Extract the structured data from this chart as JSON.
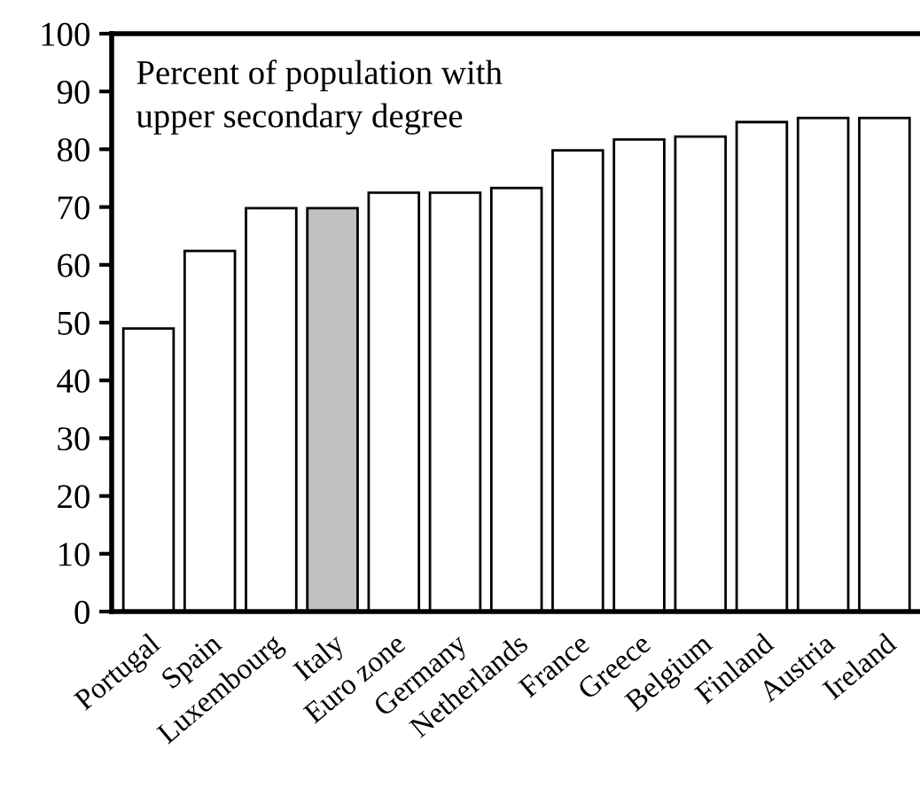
{
  "chart_data": {
    "type": "bar",
    "categories": [
      "Portugal",
      "Spain",
      "Luxembourg",
      "Italy",
      "Euro zone",
      "Germany",
      "Netherlands",
      "France",
      "Greece",
      "Belgium",
      "Finland",
      "Austria",
      "Ireland"
    ],
    "values": [
      49,
      62.4,
      69.8,
      69.8,
      72.5,
      72.5,
      73.3,
      79.8,
      81.7,
      82.2,
      84.7,
      85.4,
      85.4
    ],
    "colors": [
      "#ffffff",
      "#ffffff",
      "#ffffff",
      "#c0c0c0",
      "#ffffff",
      "#ffffff",
      "#ffffff",
      "#ffffff",
      "#ffffff",
      "#ffffff",
      "#ffffff",
      "#ffffff",
      "#ffffff"
    ],
    "ylim": [
      0,
      100
    ],
    "yticks": [
      0,
      10,
      20,
      30,
      40,
      50,
      60,
      70,
      80,
      90,
      100
    ],
    "annotations": [
      "Percent of population with\nupper secondary degree"
    ],
    "grid": false,
    "legend": false
  }
}
